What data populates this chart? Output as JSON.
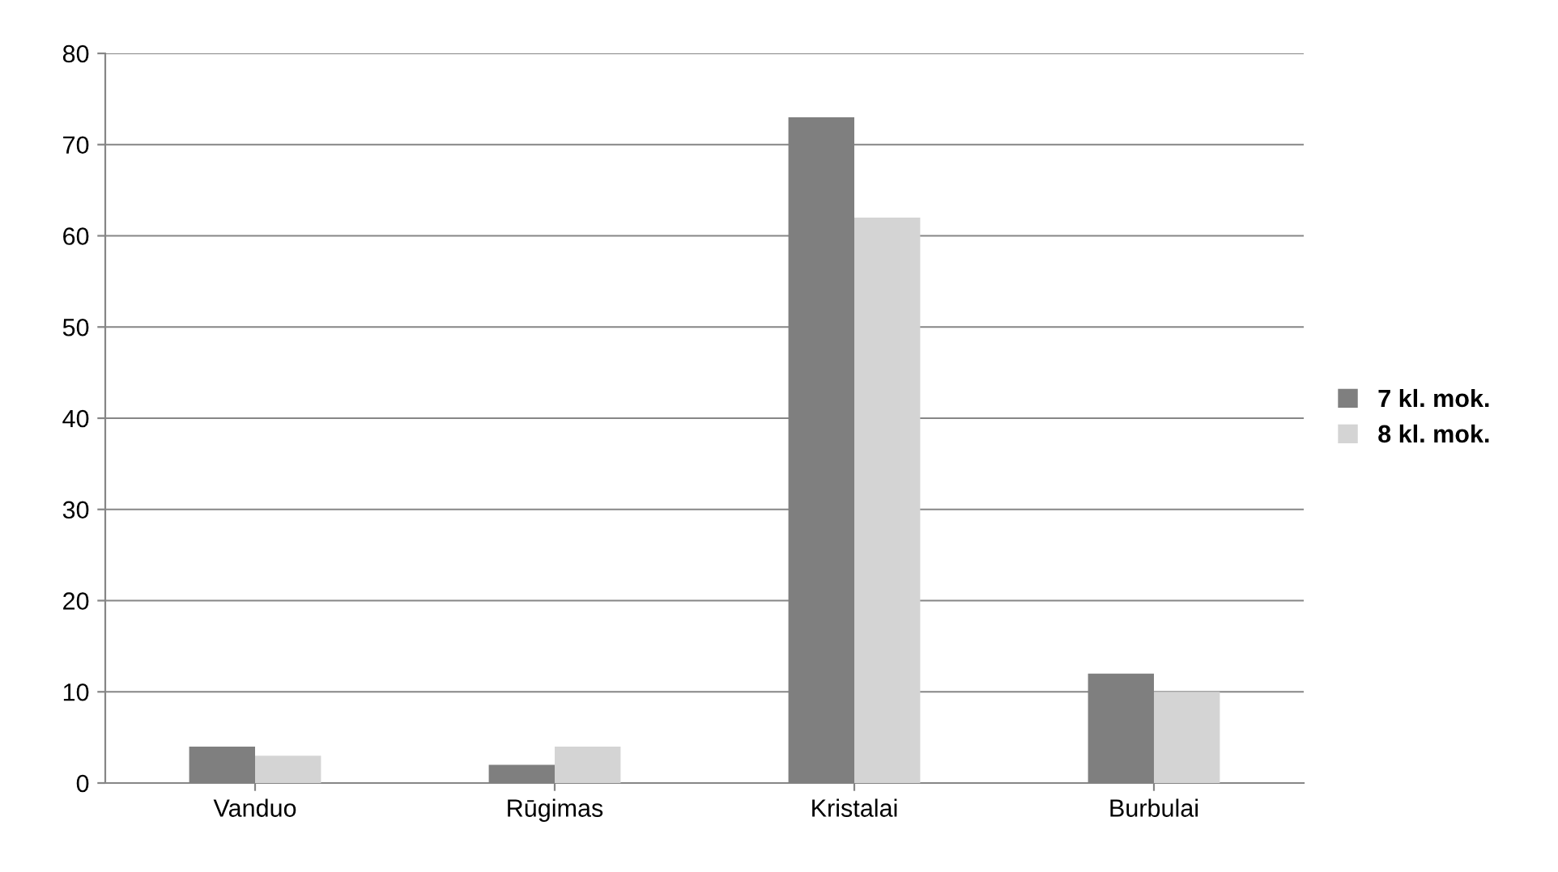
{
  "chart_data": {
    "type": "bar",
    "categories": [
      "Vanduo",
      "Rūgimas",
      "Kristalai",
      "Burbulai"
    ],
    "series": [
      {
        "name": "7 kl. mok.",
        "color": "#7f7f7f",
        "values": [
          4,
          2,
          73,
          12
        ]
      },
      {
        "name": "8 kl. mok.",
        "color": "#d4d4d4",
        "values": [
          3,
          4,
          62,
          10
        ]
      }
    ],
    "ylim": [
      0,
      80
    ],
    "yticks": [
      0,
      10,
      20,
      30,
      40,
      50,
      60,
      70,
      80
    ],
    "grid": "y",
    "legend": "right"
  }
}
